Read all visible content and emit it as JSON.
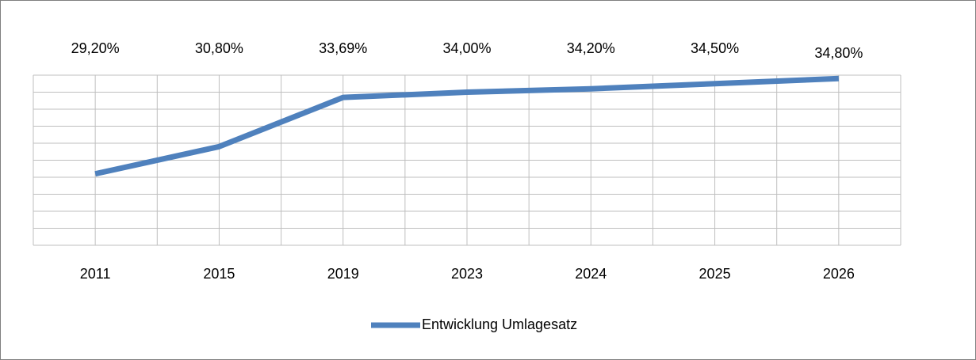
{
  "chart_data": {
    "type": "line",
    "categories": [
      "2011",
      "2015",
      "2019",
      "2023",
      "2024",
      "2025",
      "2026"
    ],
    "series": [
      {
        "name": "Entwicklung Umlagesatz",
        "color": "#4f81bd",
        "values": [
          29.2,
          30.8,
          33.69,
          34.0,
          34.2,
          34.5,
          34.8
        ],
        "value_labels": [
          "29,20%",
          "30,80%",
          "33,69%",
          "34,00%",
          "34,20%",
          "34,50%",
          "34,80%"
        ]
      }
    ],
    "ylim": [
      25,
      35
    ],
    "yticks": [
      25,
      26,
      27,
      28,
      29,
      30,
      31,
      32,
      33,
      34,
      35
    ],
    "grid": true,
    "legend": "bottom"
  }
}
